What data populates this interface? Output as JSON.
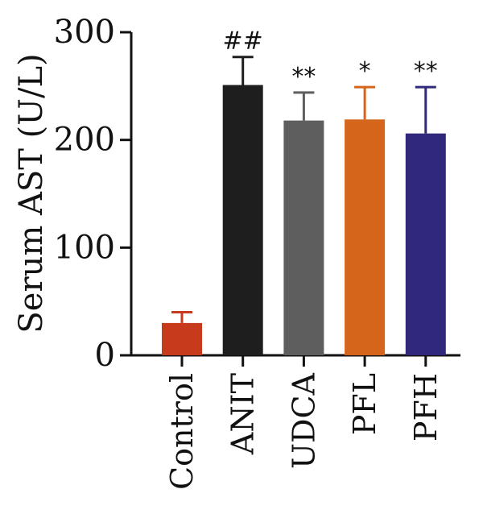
{
  "chart_data": {
    "type": "bar",
    "title": "",
    "xlabel": "",
    "ylabel": "Serum AST (U/L)",
    "ylim": [
      0,
      300
    ],
    "yticks": [
      0,
      100,
      200,
      300
    ],
    "categories": [
      "Control",
      "ANIT",
      "UDCA",
      "PFL",
      "PFH"
    ],
    "values": [
      30,
      251,
      218,
      219,
      206
    ],
    "errors": [
      10,
      26,
      26,
      30,
      43
    ],
    "annotations": [
      "",
      "##",
      "**",
      "*",
      "**"
    ],
    "colors": [
      "#c83a1c",
      "#1e1e1e",
      "#5e5e5e",
      "#d4651a",
      "#30287a"
    ],
    "grid": false,
    "legend": "none"
  }
}
